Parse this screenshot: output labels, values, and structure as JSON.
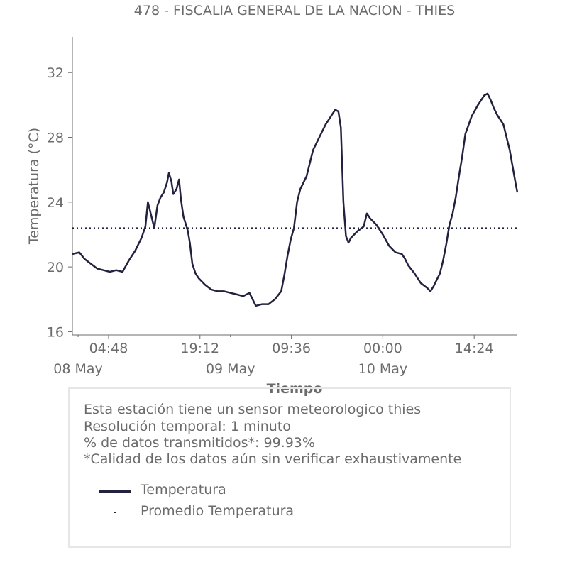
{
  "chart_data": {
    "type": "line",
    "title": "478 - FISCALIA GENERAL DE LA NACION - THIES",
    "xlabel": "Tiempo",
    "ylabel": "Temperatura (°C)",
    "ylim": [
      15.8,
      34.2
    ],
    "yticks": [
      16,
      20,
      24,
      28,
      32
    ],
    "x_unit": "hours since 08 May 00:00",
    "xlim": [
      -0.9,
      69.2
    ],
    "xtick_labels": [
      {
        "x": 4.8,
        "label": "04:48"
      },
      {
        "x": 19.2,
        "label": "19:12"
      },
      {
        "x": 33.6,
        "label": "09:36"
      },
      {
        "x": 48.0,
        "label": "00:00"
      },
      {
        "x": 62.4,
        "label": "14:24"
      }
    ],
    "date_labels": [
      {
        "x": 0,
        "label": "08 May"
      },
      {
        "x": 24,
        "label": "09 May"
      },
      {
        "x": 48,
        "label": "10 May"
      }
    ],
    "grid": false,
    "series": [
      {
        "name": "Temperatura",
        "style": "solid",
        "color": "#22223f",
        "points": [
          [
            -0.9,
            20.8
          ],
          [
            0.2,
            20.9
          ],
          [
            1.0,
            20.5
          ],
          [
            2.0,
            20.2
          ],
          [
            3.0,
            19.9
          ],
          [
            4.0,
            19.8
          ],
          [
            5.0,
            19.7
          ],
          [
            6.0,
            19.8
          ],
          [
            7.0,
            19.7
          ],
          [
            8.0,
            20.4
          ],
          [
            9.0,
            21.0
          ],
          [
            10.0,
            21.8
          ],
          [
            10.6,
            22.5
          ],
          [
            11.0,
            24.0
          ],
          [
            11.5,
            23.2
          ],
          [
            12.0,
            22.4
          ],
          [
            12.5,
            23.8
          ],
          [
            13.0,
            24.3
          ],
          [
            13.5,
            24.6
          ],
          [
            14.0,
            25.2
          ],
          [
            14.3,
            25.8
          ],
          [
            14.7,
            25.3
          ],
          [
            15.0,
            24.5
          ],
          [
            15.5,
            24.8
          ],
          [
            15.9,
            25.4
          ],
          [
            16.2,
            24.2
          ],
          [
            16.6,
            23.1
          ],
          [
            17.0,
            22.6
          ],
          [
            17.3,
            22.2
          ],
          [
            17.6,
            21.5
          ],
          [
            18.0,
            20.2
          ],
          [
            18.5,
            19.6
          ],
          [
            19.0,
            19.3
          ],
          [
            20.0,
            18.9
          ],
          [
            21.0,
            18.6
          ],
          [
            22.0,
            18.5
          ],
          [
            23.0,
            18.5
          ],
          [
            24.0,
            18.4
          ],
          [
            25.0,
            18.3
          ],
          [
            26.0,
            18.2
          ],
          [
            27.0,
            18.4
          ],
          [
            28.0,
            17.6
          ],
          [
            29.0,
            17.7
          ],
          [
            30.0,
            17.7
          ],
          [
            31.0,
            18.0
          ],
          [
            32.0,
            18.5
          ],
          [
            32.5,
            19.5
          ],
          [
            33.0,
            20.7
          ],
          [
            33.5,
            21.7
          ],
          [
            34.0,
            22.4
          ],
          [
            34.5,
            24.0
          ],
          [
            35.0,
            24.8
          ],
          [
            36.0,
            25.6
          ],
          [
            37.0,
            27.2
          ],
          [
            38.0,
            28.0
          ],
          [
            39.0,
            28.8
          ],
          [
            40.0,
            29.4
          ],
          [
            40.5,
            29.7
          ],
          [
            41.0,
            29.6
          ],
          [
            41.4,
            28.6
          ],
          [
            41.8,
            24.0
          ],
          [
            42.2,
            21.9
          ],
          [
            42.6,
            21.5
          ],
          [
            43.0,
            21.8
          ],
          [
            44.0,
            22.2
          ],
          [
            45.0,
            22.5
          ],
          [
            45.5,
            23.3
          ],
          [
            46.0,
            23.0
          ],
          [
            47.0,
            22.6
          ],
          [
            48.0,
            22.0
          ],
          [
            49.0,
            21.3
          ],
          [
            50.0,
            20.9
          ],
          [
            51.0,
            20.8
          ],
          [
            51.5,
            20.5
          ],
          [
            52.0,
            20.1
          ],
          [
            53.0,
            19.6
          ],
          [
            54.0,
            19.0
          ],
          [
            55.0,
            18.7
          ],
          [
            55.5,
            18.5
          ],
          [
            56.0,
            18.8
          ],
          [
            57.0,
            19.6
          ],
          [
            57.5,
            20.4
          ],
          [
            58.0,
            21.4
          ],
          [
            58.5,
            22.6
          ],
          [
            59.0,
            23.3
          ],
          [
            59.5,
            24.3
          ],
          [
            60.0,
            25.6
          ],
          [
            60.5,
            26.8
          ],
          [
            61.0,
            28.2
          ],
          [
            62.0,
            29.3
          ],
          [
            63.0,
            30.0
          ],
          [
            64.0,
            30.6
          ],
          [
            64.5,
            30.7
          ],
          [
            65.0,
            30.3
          ],
          [
            65.5,
            29.8
          ],
          [
            66.0,
            29.4
          ],
          [
            67.0,
            28.8
          ],
          [
            67.5,
            28.0
          ],
          [
            68.0,
            27.2
          ],
          [
            68.5,
            26.1
          ],
          [
            69.0,
            25.0
          ],
          [
            69.2,
            24.6
          ]
        ]
      },
      {
        "name": "Promedio Temperatura",
        "style": "dotted",
        "color": "#22223f",
        "value": 22.4
      }
    ]
  },
  "info": {
    "line1": "Esta estación tiene un sensor meteorologico thies",
    "line2": "Resolución temporal: 1 minuto",
    "line3": "% de datos transmitidos*: 99.93%",
    "line4": "*Calidad de los datos aún sin verificar exhaustivamente"
  },
  "legend": {
    "temp_label": "Temperatura",
    "avg_label": "Promedio Temperatura"
  }
}
